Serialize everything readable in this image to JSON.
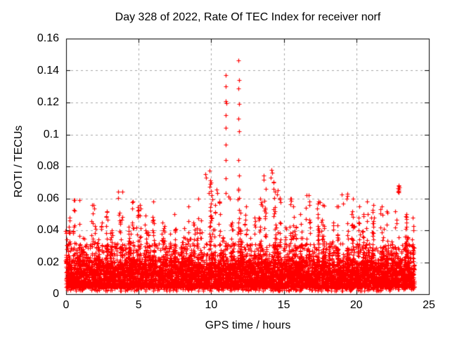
{
  "chart_data": {
    "type": "scatter",
    "title": "Day 328 of 2022, Rate Of TEC Index for receiver norf",
    "xlabel": "GPS time / hours",
    "ylabel": "ROTI / TECUs",
    "xlim": [
      0,
      25
    ],
    "ylim": [
      0,
      0.16
    ],
    "xtick_values": [
      0,
      5,
      10,
      15,
      20,
      25
    ],
    "xtick_labels": [
      "0",
      "5",
      "10",
      "15",
      "20",
      "25"
    ],
    "ytick_values": [
      0,
      0.02,
      0.04,
      0.06,
      0.08,
      0.1,
      0.12,
      0.14,
      0.16
    ],
    "ytick_labels": [
      "0",
      "0.02",
      "0.04",
      "0.06",
      "0.08",
      "0.1",
      "0.12",
      "0.14",
      "0.16"
    ],
    "grid": true,
    "legend": "none",
    "marker": "plus",
    "marker_color": "#ff0000",
    "grid_color": "#a6a6a6",
    "border_color": "#000000",
    "background_color": "#ffffff",
    "data_hours_range": [
      0,
      24
    ],
    "bin_hours": 0.5,
    "envelope_max_roti": [
      0.048,
      0.059,
      0.035,
      0.056,
      0.045,
      0.052,
      0.04,
      0.064,
      0.042,
      0.058,
      0.056,
      0.04,
      0.058,
      0.045,
      0.038,
      0.05,
      0.055,
      0.045,
      0.06,
      0.07,
      0.062,
      0.058,
      0.06,
      0.065,
      0.055,
      0.048,
      0.06,
      0.066,
      0.07,
      0.065,
      0.06,
      0.055,
      0.05,
      0.062,
      0.058,
      0.056,
      0.045,
      0.055,
      0.063,
      0.06,
      0.055,
      0.058,
      0.056,
      0.055,
      0.052,
      0.052,
      0.05,
      0.048
    ],
    "outliers": [
      [
        11.0,
        0.137
      ],
      [
        11.02,
        0.1302
      ],
      [
        11.0,
        0.1207
      ],
      [
        11.03,
        0.1196
      ],
      [
        11.0,
        0.112
      ],
      [
        11.02,
        0.1041
      ],
      [
        10.99,
        0.0935
      ],
      [
        11.01,
        0.0839
      ],
      [
        10.98,
        0.0726
      ],
      [
        11.0,
        0.0633
      ],
      [
        11.88,
        0.1465
      ],
      [
        11.9,
        0.1341
      ],
      [
        11.87,
        0.1288
      ],
      [
        11.9,
        0.119
      ],
      [
        11.88,
        0.1099
      ],
      [
        11.9,
        0.1019
      ],
      [
        11.89,
        0.0838
      ],
      [
        11.91,
        0.0743
      ],
      [
        11.88,
        0.066
      ],
      [
        11.9,
        0.0602
      ],
      [
        9.6,
        0.0752
      ],
      [
        9.65,
        0.0729
      ],
      [
        9.9,
        0.0774
      ],
      [
        9.95,
        0.0714
      ],
      [
        10.0,
        0.0646
      ],
      [
        10.37,
        0.0655
      ],
      [
        10.4,
        0.0631
      ],
      [
        11.2,
        0.0611
      ],
      [
        13.45,
        0.0576
      ],
      [
        13.5,
        0.0554
      ],
      [
        13.6,
        0.0745
      ],
      [
        13.62,
        0.0716
      ],
      [
        14.15,
        0.078
      ],
      [
        14.18,
        0.0762
      ],
      [
        14.1,
        0.0731
      ],
      [
        14.3,
        0.0704
      ],
      [
        3.59,
        0.0642
      ],
      [
        3.6,
        0.0602
      ],
      [
        0.92,
        0.0589
      ],
      [
        1.9,
        0.0558
      ],
      [
        1.92,
        0.0536
      ],
      [
        16.7,
        0.062
      ],
      [
        17.5,
        0.0576
      ],
      [
        19.0,
        0.0625
      ],
      [
        19.1,
        0.0567
      ],
      [
        22.87,
        0.0665
      ],
      [
        22.9,
        0.068
      ],
      [
        22.93,
        0.0655
      ],
      [
        22.88,
        0.0641
      ],
      [
        22.95,
        0.067
      ],
      [
        22.91,
        0.0645
      ],
      [
        22.89,
        0.0662
      ],
      [
        22.94,
        0.0638
      ],
      [
        22.92,
        0.0675
      ]
    ],
    "gen": {
      "seed": 328,
      "base_count": 115,
      "base_min": 0.0045,
      "base_span": 0.016,
      "base_pow": 1.7,
      "low_count": 8,
      "low_min": 0.002,
      "low_span": 0.0035,
      "mid_count": 28,
      "mid_min": 0.012,
      "mid_span": 0.02,
      "mid_pow": 1.6,
      "columns_per_bin": 2,
      "col_count": 12,
      "col_pow": 1.7
    }
  }
}
